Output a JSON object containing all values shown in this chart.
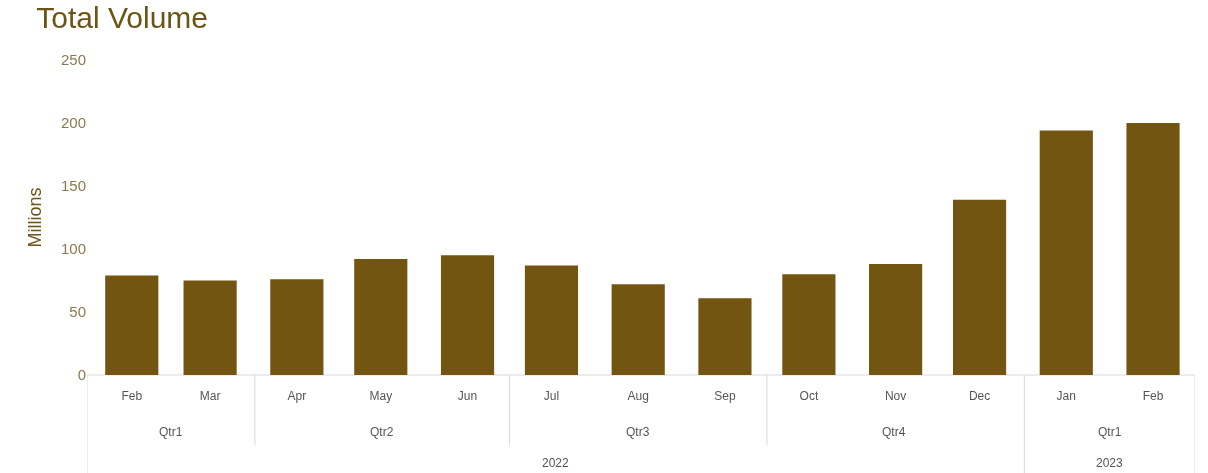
{
  "chart_data": {
    "type": "bar",
    "title": "Total Volume",
    "ylabel": "Millions",
    "x": [
      "2022-02",
      "2022-03",
      "2022-04",
      "2022-05",
      "2022-06",
      "2022-07",
      "2022-08",
      "2022-09",
      "2022-10",
      "2022-11",
      "2022-12",
      "2023-01",
      "2023-02"
    ],
    "values": [
      79,
      75,
      76,
      92,
      95,
      87,
      72,
      61,
      80,
      88,
      139,
      194,
      200
    ],
    "color": "#725510",
    "xlim": [
      "2022-01-16",
      "2023-02-16"
    ],
    "xticks": [
      {
        "value": "2022-02",
        "label": "Feb"
      },
      {
        "value": "2022-03",
        "label": "Mar"
      },
      {
        "value": "2022-04",
        "label": "Apr"
      },
      {
        "value": "2022-05",
        "label": "May"
      },
      {
        "value": "2022-06",
        "label": "Jun"
      },
      {
        "value": "2022-07",
        "label": "Jul"
      },
      {
        "value": "2022-08",
        "label": "Aug"
      },
      {
        "value": "2022-09",
        "label": "Sep"
      },
      {
        "value": "2022-10",
        "label": "Oct"
      },
      {
        "value": "2022-11",
        "label": "Nov"
      },
      {
        "value": "2022-12",
        "label": "Dec"
      },
      {
        "value": "2023-01",
        "label": "Jan"
      },
      {
        "value": "2023-02",
        "label": "Feb"
      }
    ],
    "ylim": [
      0,
      250
    ],
    "yticks": [
      0,
      50,
      100,
      150,
      200,
      250
    ],
    "annotations": [
      "Qtr1",
      "Qtr2",
      "Qtr3",
      "Qtr4",
      "Qtr1",
      "2022",
      "2023"
    ]
  }
}
